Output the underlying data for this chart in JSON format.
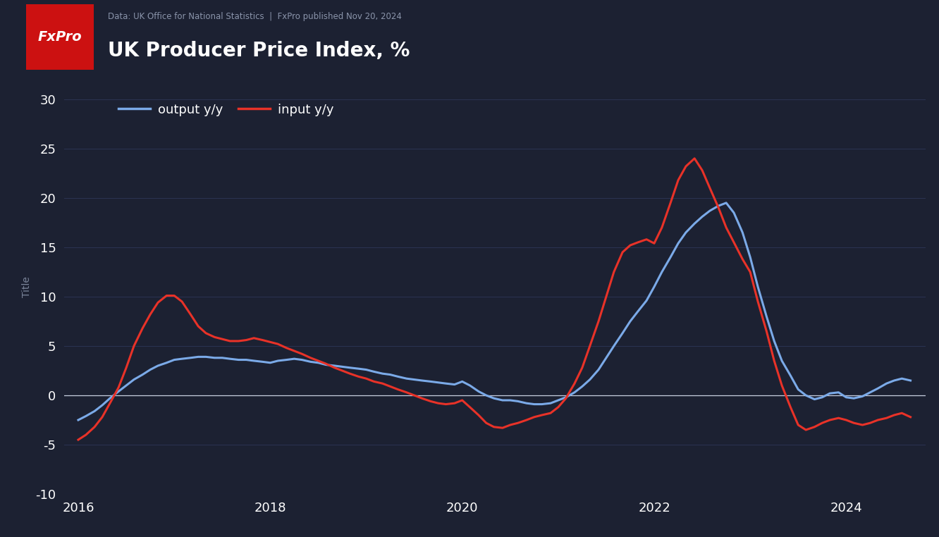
{
  "title": "UK Producer Price Index, %",
  "source_text": "Data: UK Office for National Statistics  |  FxPro published Nov 20, 2024",
  "bg_color": "#1c2132",
  "plot_bg_color": "#1c2132",
  "grid_color": "#2a3250",
  "zero_line_color": "#c8d0e0",
  "output_color": "#7baae8",
  "input_color": "#e83228",
  "ylabel": "Title",
  "ylim": [
    -10,
    32
  ],
  "yticks": [
    -10,
    -5,
    0,
    5,
    10,
    15,
    20,
    25,
    30
  ],
  "xticks": [
    2016,
    2018,
    2020,
    2022,
    2024
  ],
  "fxpro_box_color": "#cc1111",
  "fxpro_text_color": "#ffffff",
  "output_label": "output y/y",
  "input_label": "input y/y",
  "output_dates": [
    2016.0,
    2016.08,
    2016.17,
    2016.25,
    2016.33,
    2016.42,
    2016.5,
    2016.58,
    2016.67,
    2016.75,
    2016.83,
    2016.92,
    2017.0,
    2017.08,
    2017.17,
    2017.25,
    2017.33,
    2017.42,
    2017.5,
    2017.58,
    2017.67,
    2017.75,
    2017.83,
    2017.92,
    2018.0,
    2018.08,
    2018.17,
    2018.25,
    2018.33,
    2018.42,
    2018.5,
    2018.58,
    2018.67,
    2018.75,
    2018.83,
    2018.92,
    2019.0,
    2019.08,
    2019.17,
    2019.25,
    2019.33,
    2019.42,
    2019.5,
    2019.58,
    2019.67,
    2019.75,
    2019.83,
    2019.92,
    2020.0,
    2020.08,
    2020.17,
    2020.25,
    2020.33,
    2020.42,
    2020.5,
    2020.58,
    2020.67,
    2020.75,
    2020.83,
    2020.92,
    2021.0,
    2021.08,
    2021.17,
    2021.25,
    2021.33,
    2021.42,
    2021.5,
    2021.58,
    2021.67,
    2021.75,
    2021.83,
    2021.92,
    2022.0,
    2022.08,
    2022.17,
    2022.25,
    2022.33,
    2022.42,
    2022.5,
    2022.58,
    2022.67,
    2022.75,
    2022.83,
    2022.92,
    2023.0,
    2023.08,
    2023.17,
    2023.25,
    2023.33,
    2023.42,
    2023.5,
    2023.58,
    2023.67,
    2023.75,
    2023.83,
    2023.92,
    2024.0,
    2024.08,
    2024.17,
    2024.25,
    2024.33,
    2024.42,
    2024.5,
    2024.58,
    2024.67
  ],
  "output_values": [
    -2.5,
    -2.1,
    -1.6,
    -1.0,
    -0.3,
    0.4,
    1.0,
    1.6,
    2.1,
    2.6,
    3.0,
    3.3,
    3.6,
    3.7,
    3.8,
    3.9,
    3.9,
    3.8,
    3.8,
    3.7,
    3.6,
    3.6,
    3.5,
    3.4,
    3.3,
    3.5,
    3.6,
    3.7,
    3.6,
    3.4,
    3.3,
    3.1,
    3.0,
    2.9,
    2.8,
    2.7,
    2.6,
    2.4,
    2.2,
    2.1,
    1.9,
    1.7,
    1.6,
    1.5,
    1.4,
    1.3,
    1.2,
    1.1,
    1.4,
    1.0,
    0.4,
    0.0,
    -0.3,
    -0.5,
    -0.5,
    -0.6,
    -0.8,
    -0.9,
    -0.9,
    -0.8,
    -0.5,
    -0.2,
    0.3,
    0.9,
    1.6,
    2.6,
    3.8,
    5.0,
    6.3,
    7.5,
    8.5,
    9.6,
    11.0,
    12.5,
    14.0,
    15.4,
    16.5,
    17.4,
    18.1,
    18.7,
    19.2,
    19.5,
    18.5,
    16.5,
    14.0,
    11.0,
    8.0,
    5.5,
    3.5,
    2.0,
    0.6,
    0.0,
    -0.4,
    -0.2,
    0.2,
    0.3,
    -0.2,
    -0.3,
    -0.1,
    0.3,
    0.7,
    1.2,
    1.5,
    1.7,
    1.5
  ],
  "input_dates": [
    2016.0,
    2016.08,
    2016.17,
    2016.25,
    2016.33,
    2016.42,
    2016.5,
    2016.58,
    2016.67,
    2016.75,
    2016.83,
    2016.92,
    2017.0,
    2017.08,
    2017.17,
    2017.25,
    2017.33,
    2017.42,
    2017.5,
    2017.58,
    2017.67,
    2017.75,
    2017.83,
    2017.92,
    2018.0,
    2018.08,
    2018.17,
    2018.25,
    2018.33,
    2018.42,
    2018.5,
    2018.58,
    2018.67,
    2018.75,
    2018.83,
    2018.92,
    2019.0,
    2019.08,
    2019.17,
    2019.25,
    2019.33,
    2019.42,
    2019.5,
    2019.58,
    2019.67,
    2019.75,
    2019.83,
    2019.92,
    2020.0,
    2020.08,
    2020.17,
    2020.25,
    2020.33,
    2020.42,
    2020.5,
    2020.58,
    2020.67,
    2020.75,
    2020.83,
    2020.92,
    2021.0,
    2021.08,
    2021.17,
    2021.25,
    2021.33,
    2021.42,
    2021.5,
    2021.58,
    2021.67,
    2021.75,
    2021.83,
    2021.92,
    2022.0,
    2022.08,
    2022.17,
    2022.25,
    2022.33,
    2022.42,
    2022.5,
    2022.58,
    2022.67,
    2022.75,
    2022.83,
    2022.92,
    2023.0,
    2023.08,
    2023.17,
    2023.25,
    2023.33,
    2023.42,
    2023.5,
    2023.58,
    2023.67,
    2023.75,
    2023.83,
    2023.92,
    2024.0,
    2024.08,
    2024.17,
    2024.25,
    2024.33,
    2024.42,
    2024.5,
    2024.58,
    2024.67
  ],
  "input_values": [
    -4.5,
    -4.0,
    -3.2,
    -2.2,
    -0.8,
    0.8,
    2.8,
    5.0,
    6.8,
    8.2,
    9.4,
    10.1,
    10.1,
    9.5,
    8.2,
    7.0,
    6.3,
    5.9,
    5.7,
    5.5,
    5.5,
    5.6,
    5.8,
    5.6,
    5.4,
    5.2,
    4.8,
    4.5,
    4.2,
    3.8,
    3.5,
    3.2,
    2.8,
    2.5,
    2.2,
    1.9,
    1.7,
    1.4,
    1.2,
    0.9,
    0.6,
    0.3,
    0.0,
    -0.3,
    -0.6,
    -0.8,
    -0.9,
    -0.8,
    -0.5,
    -1.2,
    -2.0,
    -2.8,
    -3.2,
    -3.3,
    -3.0,
    -2.8,
    -2.5,
    -2.2,
    -2.0,
    -1.8,
    -1.2,
    -0.3,
    1.2,
    2.8,
    5.0,
    7.5,
    10.0,
    12.5,
    14.5,
    15.2,
    15.5,
    15.8,
    15.4,
    17.0,
    19.5,
    21.8,
    23.2,
    24.0,
    22.8,
    21.0,
    19.0,
    17.0,
    15.5,
    13.8,
    12.5,
    9.5,
    6.5,
    3.5,
    1.0,
    -1.2,
    -3.0,
    -3.5,
    -3.2,
    -2.8,
    -2.5,
    -2.3,
    -2.5,
    -2.8,
    -3.0,
    -2.8,
    -2.5,
    -2.3,
    -2.0,
    -1.8,
    -2.2
  ]
}
